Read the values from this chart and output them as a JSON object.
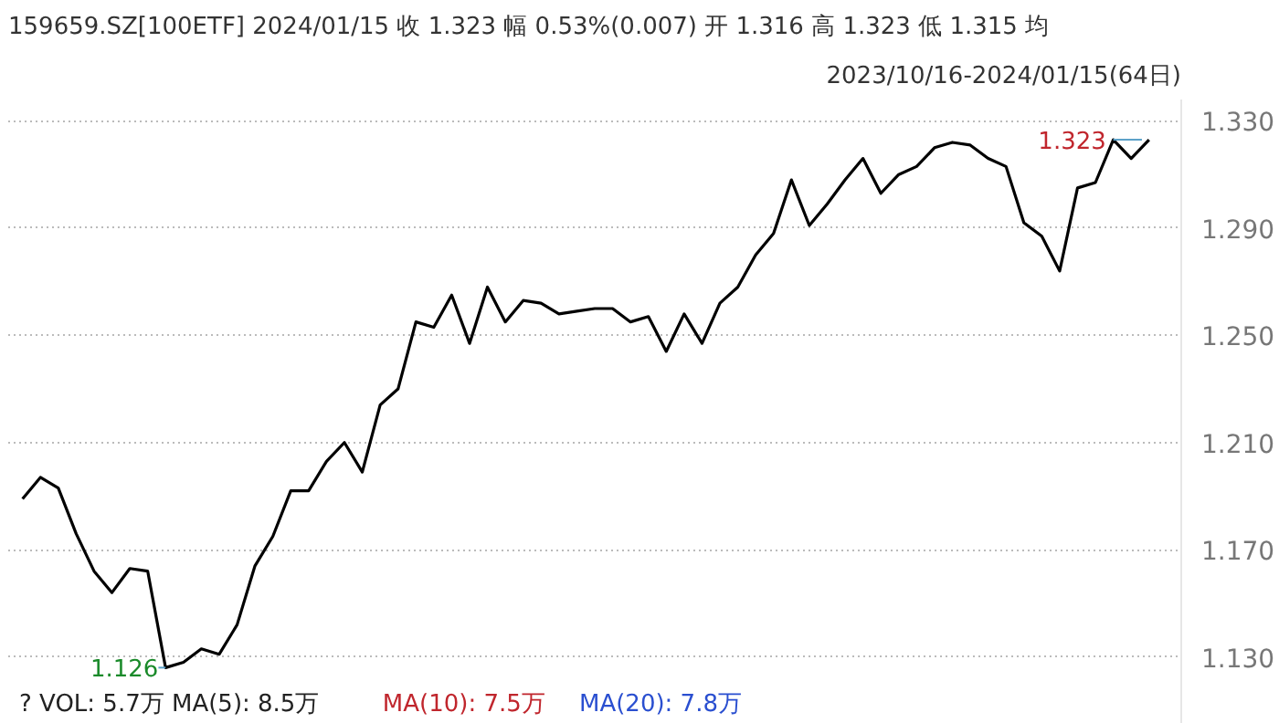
{
  "chart_data": {
    "type": "line",
    "title": "159659.SZ[100ETF]    2024/01/15    收 1.323    幅 0.53%(0.007)    开 1.316    高 1.323    低 1.315    均",
    "subtitle": "2023/10/16-2024/01/15(64日)",
    "categories": [
      null,
      null,
      null,
      null,
      null,
      null,
      null,
      null,
      null,
      null,
      null,
      null,
      null,
      null,
      null,
      null,
      null,
      null,
      null,
      null,
      null,
      null,
      null,
      null,
      null,
      null,
      null,
      null,
      null,
      null,
      null,
      null,
      null,
      null,
      null,
      null,
      null,
      null,
      null,
      null,
      null,
      null,
      null,
      null,
      null,
      null,
      null,
      null,
      null,
      null,
      null,
      null,
      null,
      null,
      null,
      null,
      null,
      null,
      null,
      null,
      null,
      null,
      null,
      null
    ],
    "series": [
      {
        "color": "#000000",
        "values": [
          1.189,
          1.197,
          1.193,
          1.176,
          1.162,
          1.154,
          1.163,
          1.162,
          1.126,
          1.128,
          1.133,
          1.131,
          1.142,
          1.164,
          1.175,
          1.192,
          1.192,
          1.203,
          1.21,
          1.199,
          1.224,
          1.23,
          1.255,
          1.253,
          1.265,
          1.247,
          1.268,
          1.255,
          1.263,
          1.262,
          1.258,
          1.259,
          1.26,
          1.26,
          1.255,
          1.257,
          1.244,
          1.258,
          1.247,
          1.262,
          1.268,
          1.28,
          1.288,
          1.308,
          1.291,
          1.299,
          1.308,
          1.316,
          1.303,
          1.31,
          1.313,
          1.32,
          1.322,
          1.321,
          1.316,
          1.313,
          1.292,
          1.287,
          1.274,
          1.305,
          1.307,
          1.323,
          1.316,
          1.323
        ]
      }
    ],
    "ylim": [
      1.105,
      1.338
    ],
    "yticks": [
      {
        "value": 1.13,
        "label": "1.130"
      },
      {
        "value": 1.17,
        "label": "1.170"
      },
      {
        "value": 1.21,
        "label": "1.210"
      },
      {
        "value": 1.25,
        "label": "1.250"
      },
      {
        "value": 1.29,
        "label": "1.290"
      },
      {
        "value": 1.33,
        "label": "1.330"
      }
    ],
    "tick_labels": "y",
    "grid": "y",
    "marker": "none",
    "line_style": "solid",
    "annotations": [
      "1.126",
      "1.323",
      "? VOL: 5.7万 MA(5): 8.5万",
      "MA(10): 7.5万",
      "MA(20): 7.8万"
    ]
  }
}
